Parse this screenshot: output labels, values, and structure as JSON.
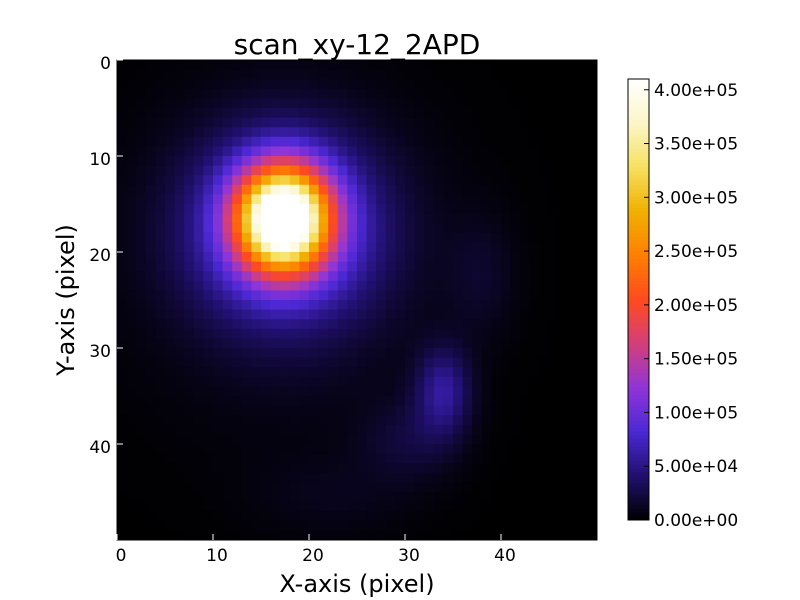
{
  "chart_data": {
    "type": "heatmap",
    "title": "scan_xy-12_2APD",
    "xlabel": "X-axis (pixel)",
    "ylabel": "Y-axis (pixel)",
    "grid": false,
    "x_range": [
      0,
      50
    ],
    "y_range": [
      0,
      50
    ],
    "y_inverted": true,
    "x_ticks": [
      0,
      10,
      20,
      30,
      40
    ],
    "x_tick_labels": [
      "0",
      "10",
      "20",
      "30",
      "40"
    ],
    "y_ticks": [
      0,
      10,
      20,
      30,
      40
    ],
    "y_tick_labels": [
      "0",
      "10",
      "20",
      "30",
      "40"
    ],
    "colormap": "gnuplot2",
    "colormap_stops": [
      "#000000",
      "#20106e",
      "#4b28d4",
      "#8f35d8",
      "#d43e7a",
      "#ff4a1e",
      "#ff7f00",
      "#f0b000",
      "#f7e060",
      "#fbf6c8",
      "#ffffff"
    ],
    "colorbar": {
      "range": [
        0,
        410000
      ],
      "ticks": [
        0,
        50000,
        100000,
        150000,
        200000,
        250000,
        300000,
        350000,
        400000
      ],
      "tick_labels": [
        "0.00e+00",
        "5.00e+04",
        "1.00e+05",
        "1.50e+05",
        "2.00e+05",
        "2.50e+05",
        "3.00e+05",
        "3.50e+05",
        "4.00e+05"
      ]
    },
    "grid_size": [
      50,
      50
    ],
    "components": [
      {
        "name": "main-spot",
        "cx": 16.8,
        "cy": 16.0,
        "sx": 3.2,
        "sy": 3.6,
        "amp": 410000
      },
      {
        "name": "main-halo",
        "cx": 17.0,
        "cy": 17.0,
        "sx": 6.5,
        "sy": 6.5,
        "amp": 110000
      },
      {
        "name": "outer-glow",
        "cx": 17.0,
        "cy": 20.0,
        "sx": 11.0,
        "sy": 12.0,
        "amp": 16000
      },
      {
        "name": "secondary-spot",
        "cx": 33.5,
        "cy": 34.0,
        "sx": 2.0,
        "sy": 3.2,
        "amp": 55000
      },
      {
        "name": "secondary-tail",
        "cx": 30.0,
        "cy": 39.0,
        "sx": 3.5,
        "sy": 3.0,
        "amp": 20000
      },
      {
        "name": "upper-right-blob",
        "cx": 37.5,
        "cy": 22.0,
        "sx": 2.5,
        "sy": 4.5,
        "amp": 14000
      },
      {
        "name": "lower-faint",
        "cx": 22.0,
        "cy": 45.0,
        "sx": 6.0,
        "sy": 3.0,
        "amp": 9000
      }
    ]
  }
}
